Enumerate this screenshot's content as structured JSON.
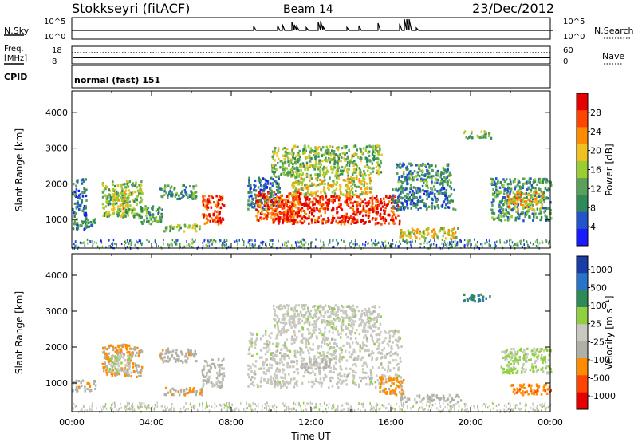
{
  "header": {
    "station": "Stokkseyri (fitACF)",
    "beam": "Beam 14",
    "date": "23/Dec/2012"
  },
  "nsky_panel": {
    "label": "N.Sky",
    "left_ticks": [
      "10^5",
      "10^0"
    ],
    "right_ticks": [
      "10^5",
      "10^0"
    ],
    "right_label": "N.Search"
  },
  "freq_panel": {
    "label_line1": "Freq.",
    "label_line2": "[MHz]",
    "left_ticks": [
      "18",
      "8"
    ],
    "right_ticks": [
      "60",
      "0"
    ],
    "right_label": "Nave"
  },
  "cpid_panel": {
    "label": "CPID",
    "text": "normal (fast) 151"
  },
  "colors": {
    "power_scale": [
      "#1a1aff",
      "#2255cc",
      "#2e8b57",
      "#5aa05a",
      "#9acd32",
      "#f0c020",
      "#ff8c00",
      "#ff4500",
      "#e60000"
    ],
    "velocity_scale": [
      "#1a3ca8",
      "#2874c8",
      "#2e8b57",
      "#90d040",
      "#c8c8c0",
      "#b0b0a8",
      "#ff8c00",
      "#ff4500",
      "#e60000"
    ]
  },
  "chart_data": [
    {
      "type": "heatmap",
      "name": "power",
      "xlabel": "",
      "ylabel": "Slant Range [km]",
      "x_ticks": [
        "00:00",
        "04:00",
        "08:00",
        "12:00",
        "16:00",
        "20:00",
        "00:00"
      ],
      "x_range_hours": [
        0,
        24
      ],
      "y_range_km": [
        200,
        4600
      ],
      "y_ticks": [
        1000,
        2000,
        3000,
        4000
      ],
      "colorbar": {
        "label": "Power [dB]",
        "ticks": [
          "28",
          "24",
          "20",
          "16",
          "12",
          "8",
          "4"
        ],
        "range": [
          0,
          32
        ]
      },
      "regions": [
        {
          "t0": 0.0,
          "t1": 0.7,
          "r0": 700,
          "r1": 2200,
          "value": 8
        },
        {
          "t0": 0.7,
          "t1": 1.2,
          "r0": 800,
          "r1": 1100,
          "value": 12
        },
        {
          "t0": 1.5,
          "t1": 3.5,
          "r0": 1100,
          "r1": 2100,
          "value": 14
        },
        {
          "t0": 2.0,
          "t1": 2.8,
          "r0": 1300,
          "r1": 1800,
          "value": 20
        },
        {
          "t0": 3.3,
          "t1": 4.5,
          "r0": 900,
          "r1": 1400,
          "value": 12
        },
        {
          "t0": 4.4,
          "t1": 6.2,
          "r0": 1600,
          "r1": 2000,
          "value": 10
        },
        {
          "t0": 4.6,
          "t1": 6.5,
          "r0": 700,
          "r1": 900,
          "value": 14
        },
        {
          "t0": 6.5,
          "t1": 7.6,
          "r0": 900,
          "r1": 1700,
          "value": 28
        },
        {
          "t0": 8.8,
          "t1": 10.4,
          "r0": 1300,
          "r1": 2200,
          "value": 8
        },
        {
          "t0": 9.2,
          "t1": 11.5,
          "r0": 1000,
          "r1": 1800,
          "value": 26
        },
        {
          "t0": 10.0,
          "t1": 16.4,
          "r0": 900,
          "r1": 1700,
          "value": 28
        },
        {
          "t0": 11.0,
          "t1": 15.0,
          "r0": 1700,
          "r1": 2200,
          "value": 18
        },
        {
          "t0": 10.0,
          "t1": 15.5,
          "r0": 2200,
          "r1": 3100,
          "value": 14
        },
        {
          "t0": 16.0,
          "t1": 19.2,
          "r0": 1300,
          "r1": 1900,
          "value": 8
        },
        {
          "t0": 16.2,
          "t1": 19.0,
          "r0": 1900,
          "r1": 2600,
          "value": 10
        },
        {
          "t0": 16.4,
          "t1": 19.4,
          "r0": 500,
          "r1": 800,
          "value": 18
        },
        {
          "t0": 19.6,
          "t1": 21.0,
          "r0": 3300,
          "r1": 3500,
          "value": 14
        },
        {
          "t0": 21.0,
          "t1": 24.0,
          "r0": 1000,
          "r1": 2200,
          "value": 10
        },
        {
          "t0": 21.8,
          "t1": 23.6,
          "r0": 1300,
          "r1": 1800,
          "value": 20
        }
      ]
    },
    {
      "type": "heatmap",
      "name": "velocity",
      "xlabel": "Time UT",
      "ylabel": "Slant Range [km]",
      "x_ticks": [
        "00:00",
        "04:00",
        "08:00",
        "12:00",
        "16:00",
        "20:00",
        "00:00"
      ],
      "x_range_hours": [
        0,
        24
      ],
      "y_range_km": [
        200,
        4600
      ],
      "y_ticks": [
        1000,
        2000,
        3000,
        4000
      ],
      "colorbar": {
        "label": "Velocity [m s⁻¹]",
        "ticks": [
          "1000",
          "500",
          "100",
          "25",
          "-25",
          "-100",
          "-500",
          "-1000"
        ],
        "range": [
          -1200,
          1200
        ]
      },
      "regions": [
        {
          "t0": 0.0,
          "t1": 1.2,
          "r0": 800,
          "r1": 1100,
          "value": -300
        },
        {
          "t0": 1.5,
          "t1": 3.5,
          "r0": 1200,
          "r1": 2100,
          "value": -400
        },
        {
          "t0": 1.8,
          "t1": 3.0,
          "r0": 1300,
          "r1": 1800,
          "value": 50
        },
        {
          "t0": 4.4,
          "t1": 6.2,
          "r0": 1600,
          "r1": 2000,
          "value": -300
        },
        {
          "t0": 4.6,
          "t1": 6.5,
          "r0": 700,
          "r1": 900,
          "value": -400
        },
        {
          "t0": 6.5,
          "t1": 7.6,
          "r0": 900,
          "r1": 1700,
          "value": -200
        },
        {
          "t0": 8.8,
          "t1": 16.5,
          "r0": 900,
          "r1": 2500,
          "value": 0
        },
        {
          "t0": 10.0,
          "t1": 15.5,
          "r0": 2500,
          "r1": 3200,
          "value": 10
        },
        {
          "t0": 11.5,
          "t1": 13.0,
          "r0": 1400,
          "r1": 1700,
          "value": -150
        },
        {
          "t0": 15.4,
          "t1": 16.6,
          "r0": 700,
          "r1": 1200,
          "value": -500
        },
        {
          "t0": 16.4,
          "t1": 19.5,
          "r0": 500,
          "r1": 700,
          "value": -200
        },
        {
          "t0": 19.6,
          "t1": 21.0,
          "r0": 3300,
          "r1": 3500,
          "value": 600
        },
        {
          "t0": 21.5,
          "t1": 24.0,
          "r0": 1300,
          "r1": 2000,
          "value": 150
        },
        {
          "t0": 22.0,
          "t1": 24.0,
          "r0": 700,
          "r1": 1000,
          "value": -600
        }
      ]
    }
  ]
}
